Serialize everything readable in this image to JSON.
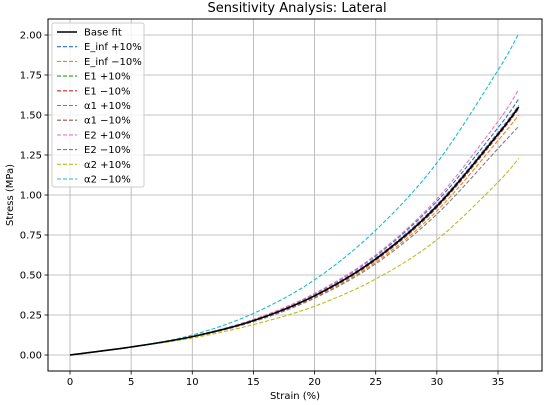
{
  "chart_data": {
    "type": "line",
    "title": "Sensitivity Analysis: Lateral",
    "xlabel": "Strain (%)",
    "ylabel": "Stress (MPa)",
    "xlim": [
      -1.8,
      38.6
    ],
    "ylim": [
      -0.1,
      2.1
    ],
    "xticks": [
      0,
      5,
      10,
      15,
      20,
      25,
      30,
      35
    ],
    "yticks": [
      0.0,
      0.25,
      0.5,
      0.75,
      1.0,
      1.25,
      1.5,
      1.75,
      2.0
    ],
    "xtick_labels": [
      "0",
      "5",
      "10",
      "15",
      "20",
      "25",
      "30",
      "35"
    ],
    "ytick_labels": [
      "0.00",
      "0.25",
      "0.50",
      "0.75",
      "1.00",
      "1.25",
      "1.50",
      "1.75",
      "2.00"
    ],
    "grid": true,
    "legend_position": "top-left",
    "x": [
      0,
      5,
      10,
      15,
      20,
      25,
      30,
      35,
      36.7
    ],
    "series": [
      {
        "name": "Base fit",
        "color": "#000000",
        "style": "solid",
        "values": [
          0,
          0.05,
          0.115,
          0.215,
          0.37,
          0.6,
          0.93,
          1.38,
          1.55
        ]
      },
      {
        "name": "E_inf +10%",
        "color": "#1f77b4",
        "style": "dashed",
        "values": [
          0,
          0.05,
          0.117,
          0.222,
          0.383,
          0.62,
          0.96,
          1.42,
          1.6
        ]
      },
      {
        "name": "E_inf −10%",
        "color": "#ff7f0e",
        "style": "dashed",
        "values": [
          0,
          0.05,
          0.113,
          0.209,
          0.358,
          0.58,
          0.9,
          1.34,
          1.5
        ]
      },
      {
        "name": "E1 +10%",
        "color": "#2ca02c",
        "style": "dashed",
        "values": [
          0,
          0.05,
          0.116,
          0.217,
          0.373,
          0.605,
          0.937,
          1.39,
          1.56
        ]
      },
      {
        "name": "E1 −10%",
        "color": "#d62728",
        "style": "dashed",
        "values": [
          0,
          0.05,
          0.114,
          0.213,
          0.367,
          0.595,
          0.923,
          1.37,
          1.54
        ]
      },
      {
        "name": "α1 +10%",
        "color": "#9467bd",
        "style": "dashed",
        "values": [
          0,
          0.05,
          0.116,
          0.218,
          0.375,
          0.608,
          0.94,
          1.39,
          1.56
        ]
      },
      {
        "name": "α1 −10%",
        "color": "#8c564b",
        "style": "dashed",
        "values": [
          0,
          0.05,
          0.114,
          0.212,
          0.365,
          0.592,
          0.92,
          1.37,
          1.54
        ]
      },
      {
        "name": "E2 +10%",
        "color": "#e377c2",
        "style": "dashed",
        "values": [
          0,
          0.05,
          0.117,
          0.222,
          0.385,
          0.625,
          0.975,
          1.46,
          1.66
        ]
      },
      {
        "name": "E2 −10%",
        "color": "#7f7f7f",
        "style": "dashed",
        "values": [
          0,
          0.05,
          0.113,
          0.208,
          0.355,
          0.57,
          0.88,
          1.29,
          1.43
        ]
      },
      {
        "name": "α2 +10%",
        "color": "#bcbd22",
        "style": "dashed",
        "values": [
          0,
          0.05,
          0.106,
          0.19,
          0.305,
          0.475,
          0.72,
          1.08,
          1.23
        ]
      },
      {
        "name": "α2 −10%",
        "color": "#17becf",
        "style": "dashed",
        "values": [
          0,
          0.05,
          0.125,
          0.26,
          0.47,
          0.78,
          1.2,
          1.78,
          2.01
        ]
      }
    ]
  }
}
